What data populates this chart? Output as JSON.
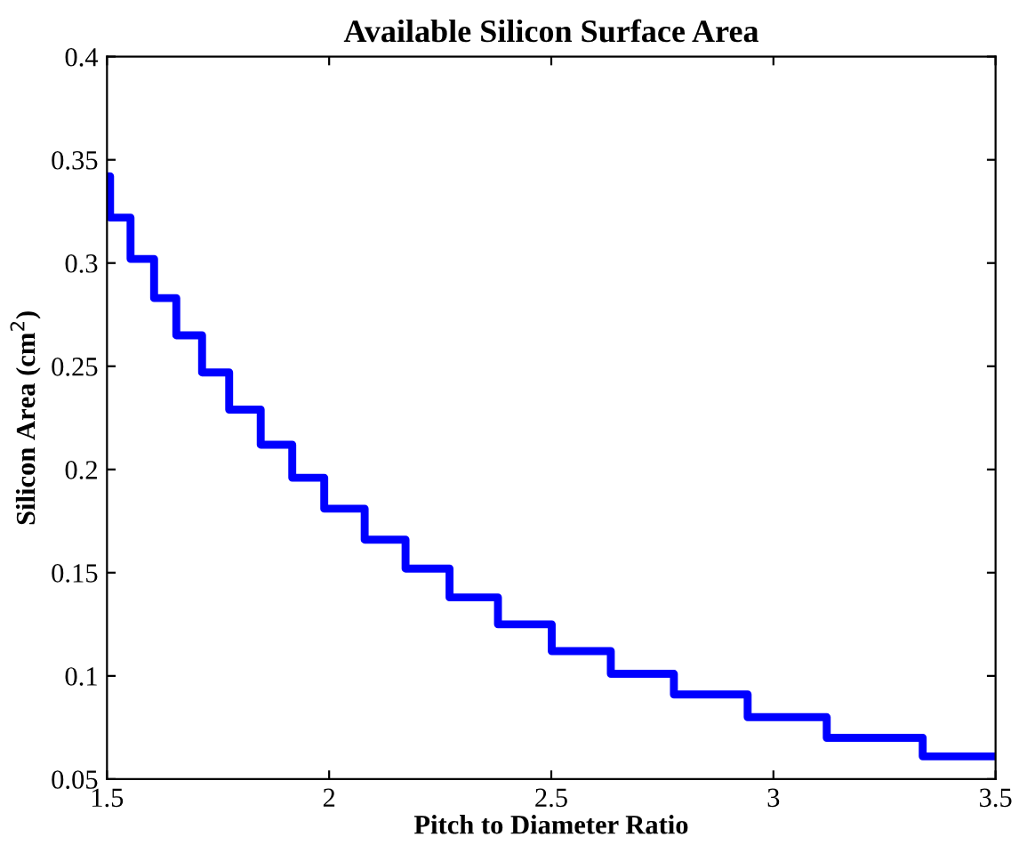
{
  "chart_data": {
    "type": "step",
    "title": "Available Silicon Surface Area",
    "xlabel": "Pitch to Diameter Ratio",
    "ylabel": "Silicon Area (cm$^{2}$)",
    "x": [
      1.5,
      1.507,
      1.553,
      1.606,
      1.656,
      1.714,
      1.775,
      1.846,
      1.917,
      1.989,
      2.08,
      2.172,
      2.271,
      2.38,
      2.501,
      2.634,
      2.776,
      2.942,
      3.12,
      3.336,
      3.5
    ],
    "series": [
      {
        "color": "#0000ff",
        "values": [
          0.342,
          0.322,
          0.302,
          0.283,
          0.265,
          0.247,
          0.229,
          0.212,
          0.196,
          0.181,
          0.166,
          0.152,
          0.138,
          0.125,
          0.112,
          0.101,
          0.091,
          0.08,
          0.07,
          0.061,
          0.061
        ]
      }
    ],
    "xlim": [
      1.5,
      3.5
    ],
    "xticks": [
      1.5,
      2,
      2.5,
      3,
      3.5
    ],
    "ylim": [
      0.05,
      0.4
    ],
    "yticks": [
      0.05,
      0.1,
      0.15,
      0.2,
      0.25,
      0.3,
      0.35,
      0.4
    ],
    "grid": false,
    "line_style": "solid",
    "marker": "none"
  }
}
